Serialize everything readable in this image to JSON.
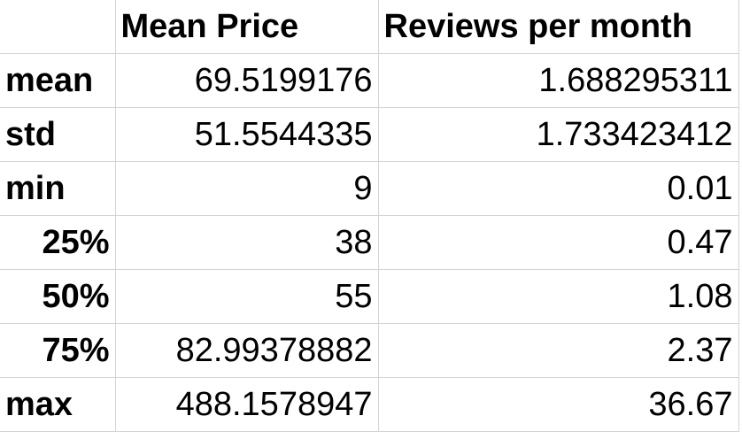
{
  "table": {
    "columns": [
      "Mean Price",
      "Reviews per month"
    ],
    "rows": [
      {
        "label": "mean",
        "values": [
          "69.5199176",
          "1.688295311"
        ]
      },
      {
        "label": "std",
        "values": [
          "51.5544335",
          "1.733423412"
        ]
      },
      {
        "label": "min",
        "values": [
          "9",
          "0.01"
        ]
      },
      {
        "label": "25%",
        "values": [
          "38",
          "0.47"
        ]
      },
      {
        "label": "50%",
        "values": [
          "55",
          "1.08"
        ]
      },
      {
        "label": "75%",
        "values": [
          "82.99378882",
          "2.37"
        ]
      },
      {
        "label": "max",
        "values": [
          "488.1578947",
          "36.67"
        ]
      }
    ]
  }
}
